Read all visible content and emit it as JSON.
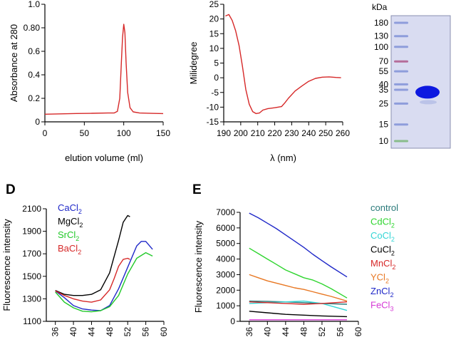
{
  "panel_labels": {
    "d": "D",
    "e": "E"
  },
  "gel": {
    "unit": "kDa",
    "marker_labels": [
      "180",
      "130",
      "100",
      "70",
      "55",
      "40",
      "35",
      "25",
      "15",
      "10"
    ],
    "marker_kda": [
      180,
      130,
      100,
      70,
      55,
      40,
      35,
      25,
      15,
      10
    ],
    "band_kda": 33,
    "background_color": "#d9dcf1",
    "band_color": "#0d18e0",
    "marker_color": "#8596d8"
  },
  "chart_data": [
    {
      "id": "sec",
      "type": "line",
      "xlabel": "elution volume (ml)",
      "ylabel": "Absorbance at 280",
      "xlim": [
        0,
        150
      ],
      "ylim": [
        0,
        1.0
      ],
      "xticks": [
        0,
        50,
        100,
        150
      ],
      "xtick_labels": [
        "0",
        "50",
        "100",
        "150"
      ],
      "yticks": [
        0,
        0.2,
        0.4,
        0.6,
        0.8,
        1.0
      ],
      "ytick_labels": [
        "0",
        "0.2",
        "0.4",
        "0.6",
        "0.80",
        "1.0"
      ],
      "series": [
        {
          "color": "#d62828",
          "x": [
            0,
            20,
            40,
            60,
            80,
            88,
            92,
            95,
            97,
            98.5,
            100,
            101.5,
            103,
            105,
            108,
            112,
            120,
            135,
            150
          ],
          "y": [
            0.065,
            0.068,
            0.071,
            0.073,
            0.075,
            0.076,
            0.09,
            0.2,
            0.5,
            0.72,
            0.83,
            0.76,
            0.5,
            0.25,
            0.12,
            0.085,
            0.075,
            0.072,
            0.07
          ]
        }
      ]
    },
    {
      "id": "cd",
      "type": "line",
      "xlabel": "λ (nm)",
      "ylabel": "Milidegree",
      "xlim": [
        190,
        260
      ],
      "ylim": [
        -15,
        25
      ],
      "xticks": [
        190,
        200,
        210,
        220,
        230,
        240,
        250,
        260
      ],
      "xtick_labels": [
        "190",
        "200",
        "210",
        "220",
        "230",
        "240",
        "250",
        "260"
      ],
      "yticks": [
        -15,
        -10,
        -5,
        0,
        5,
        10,
        15,
        20,
        25
      ],
      "ytick_labels": [
        "-15",
        "-10",
        "-5",
        "0",
        "5",
        "10",
        "15",
        "20",
        "25"
      ],
      "series": [
        {
          "color": "#d62828",
          "x": [
            191,
            193,
            195,
            197,
            199,
            201,
            203,
            205,
            207,
            209,
            211,
            213,
            216,
            220,
            224,
            226,
            228,
            232,
            236,
            240,
            244,
            248,
            252,
            256,
            259
          ],
          "y": [
            21,
            21.5,
            19.5,
            16,
            11,
            4,
            -4,
            -9,
            -11.5,
            -12.2,
            -12,
            -11,
            -10.5,
            -10.2,
            -9.8,
            -8.5,
            -7,
            -4.5,
            -2.8,
            -1.2,
            -0.2,
            0.2,
            0.3,
            0.1,
            0
          ]
        }
      ]
    },
    {
      "id": "d",
      "type": "line",
      "xlabel": "",
      "ylabel": "Fluorescence intensity",
      "xlim": [
        34,
        60
      ],
      "ylim": [
        1100,
        2100
      ],
      "xticks": [
        36,
        40,
        44,
        48,
        52,
        56,
        60
      ],
      "xtick_labels": [
        "36",
        "40",
        "44",
        "48",
        "52",
        "56",
        "60"
      ],
      "yticks": [
        1100,
        1300,
        1500,
        1700,
        1900,
        2100
      ],
      "ytick_labels": [
        "1100",
        "1300",
        "1500",
        "1700",
        "1900",
        "2100"
      ],
      "legend_position": "top-left",
      "series": [
        {
          "name": "CaCl",
          "sub": "2",
          "color": "#1f28c8",
          "x": [
            36,
            38,
            40,
            42,
            44,
            46,
            48,
            50,
            52,
            54,
            55,
            56,
            57.5
          ],
          "y": [
            1370,
            1310,
            1240,
            1210,
            1200,
            1195,
            1240,
            1390,
            1580,
            1770,
            1810,
            1810,
            1740
          ]
        },
        {
          "name": "MgCl",
          "sub": "2",
          "color": "#000000",
          "x": [
            36,
            38,
            40,
            42,
            44,
            46,
            48,
            50,
            51,
            52,
            52.5
          ],
          "y": [
            1375,
            1340,
            1330,
            1330,
            1340,
            1380,
            1530,
            1820,
            1980,
            2040,
            2030
          ]
        },
        {
          "name": "SrCl",
          "sub": "2",
          "color": "#22c92a",
          "x": [
            36,
            38,
            40,
            42,
            44,
            46,
            48,
            50,
            52,
            54,
            56,
            57.5
          ],
          "y": [
            1360,
            1270,
            1220,
            1190,
            1185,
            1195,
            1230,
            1330,
            1520,
            1660,
            1710,
            1680
          ]
        },
        {
          "name": "BaCl",
          "sub": "2",
          "color": "#d62828",
          "x": [
            36,
            38,
            40,
            42,
            44,
            46,
            48,
            49,
            50,
            51,
            52,
            52.5
          ],
          "y": [
            1370,
            1330,
            1300,
            1280,
            1270,
            1290,
            1380,
            1480,
            1590,
            1650,
            1660,
            1650
          ]
        }
      ]
    },
    {
      "id": "e",
      "type": "line",
      "xlabel": "",
      "ylabel": "Fluorescence intensity",
      "xlim": [
        34,
        60
      ],
      "ylim": [
        0,
        7000
      ],
      "xticks": [
        36,
        40,
        44,
        48,
        52,
        56,
        60
      ],
      "xtick_labels": [
        "36",
        "40",
        "44",
        "48",
        "52",
        "56",
        "60"
      ],
      "yticks": [
        0,
        1000,
        2000,
        3000,
        4000,
        5000,
        6000,
        7000
      ],
      "ytick_labels": [
        "0",
        "1000",
        "2000",
        "3000",
        "4000",
        "5000",
        "6000",
        "7000"
      ],
      "legend_position": "right",
      "series": [
        {
          "name": "control",
          "sub": "",
          "color": "#2a7a7a",
          "x": [
            36,
            40,
            44,
            48,
            52,
            57.5
          ],
          "y": [
            1300,
            1280,
            1250,
            1200,
            1150,
            1100
          ]
        },
        {
          "name": "CdCl",
          "sub": "2",
          "color": "#2fd52f",
          "x": [
            36,
            38,
            40,
            42,
            44,
            46,
            48,
            50,
            52,
            54,
            57.5
          ],
          "y": [
            4700,
            4350,
            4000,
            3650,
            3300,
            3050,
            2800,
            2650,
            2400,
            2100,
            1500
          ]
        },
        {
          "name": "CoCl",
          "sub": "2",
          "color": "#33d5d5",
          "x": [
            36,
            40,
            44,
            48,
            52,
            57.5
          ],
          "y": [
            1150,
            1200,
            1250,
            1300,
            1150,
            700
          ]
        },
        {
          "name": "CuCl",
          "sub": "2",
          "color": "#000000",
          "x": [
            36,
            40,
            44,
            48,
            52,
            57.5
          ],
          "y": [
            650,
            550,
            450,
            400,
            350,
            300
          ]
        },
        {
          "name": "MnCl",
          "sub": "2",
          "color": "#d62828",
          "x": [
            36,
            40,
            44,
            48,
            52,
            57.5
          ],
          "y": [
            1250,
            1200,
            1150,
            1100,
            1150,
            1250
          ]
        },
        {
          "name": "YCl",
          "sub": "2",
          "color": "#e87722",
          "x": [
            36,
            38,
            40,
            42,
            44,
            46,
            48,
            50,
            52,
            54,
            57.5
          ],
          "y": [
            3000,
            2800,
            2600,
            2450,
            2300,
            2150,
            2050,
            1900,
            1750,
            1600,
            1300
          ]
        },
        {
          "name": "ZnCl",
          "sub": "2",
          "color": "#1f28c8",
          "x": [
            36,
            38,
            40,
            42,
            44,
            46,
            48,
            50,
            52,
            54,
            57.5
          ],
          "y": [
            6950,
            6650,
            6300,
            5950,
            5550,
            5150,
            4750,
            4300,
            3900,
            3500,
            2850
          ]
        },
        {
          "name": "FeCl",
          "sub": "3",
          "color": "#d63ad6",
          "x": [
            36,
            40,
            44,
            48,
            52,
            57.5
          ],
          "y": [
            100,
            100,
            100,
            100,
            100,
            100
          ]
        }
      ]
    }
  ]
}
